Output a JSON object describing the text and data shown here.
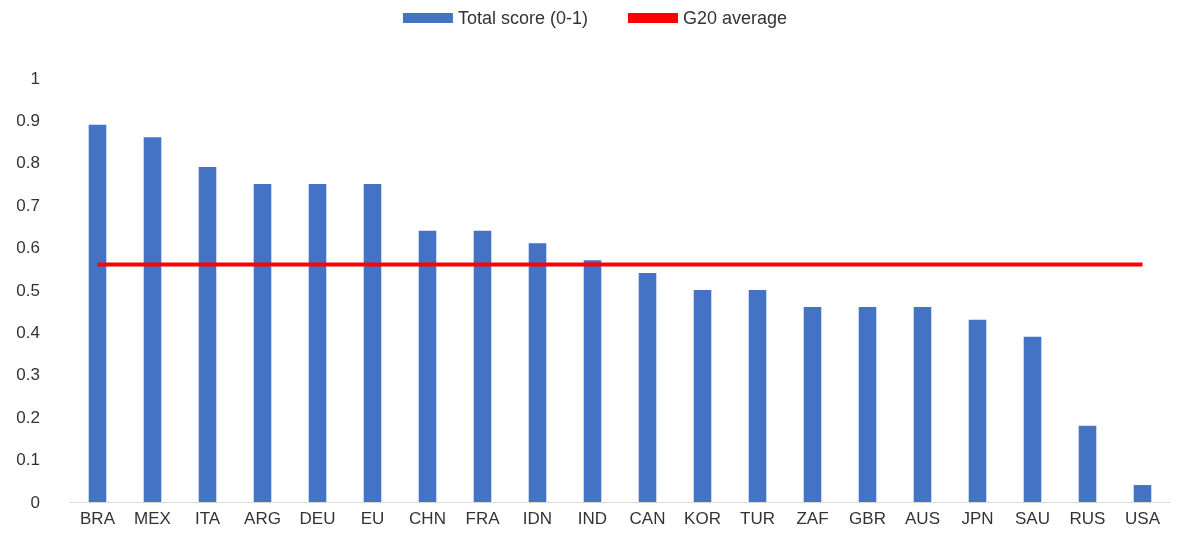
{
  "chart_data": {
    "type": "bar",
    "categories": [
      "BRA",
      "MEX",
      "ITA",
      "ARG",
      "DEU",
      "EU",
      "CHN",
      "FRA",
      "IDN",
      "IND",
      "CAN",
      "KOR",
      "TUR",
      "ZAF",
      "GBR",
      "AUS",
      "JPN",
      "SAU",
      "RUS",
      "USA"
    ],
    "series": [
      {
        "name": "Total score (0-1)",
        "color": "#4472c4",
        "values": [
          0.89,
          0.86,
          0.79,
          0.75,
          0.75,
          0.75,
          0.64,
          0.64,
          0.61,
          0.57,
          0.54,
          0.5,
          0.5,
          0.46,
          0.46,
          0.46,
          0.43,
          0.39,
          0.18,
          0.04
        ]
      },
      {
        "name": "G20 average",
        "type": "line",
        "color": "#ff0000",
        "marker": "none",
        "values": [
          0.56,
          0.56,
          0.56,
          0.56,
          0.56,
          0.56,
          0.56,
          0.56,
          0.56,
          0.56,
          0.56,
          0.56,
          0.56,
          0.56,
          0.56,
          0.56,
          0.56,
          0.56,
          0.56,
          0.56
        ]
      }
    ],
    "ylim": [
      0,
      1
    ],
    "yticks": [
      0,
      0.1,
      0.2,
      0.3,
      0.4,
      0.5,
      0.6,
      0.7,
      0.8,
      0.9,
      1
    ],
    "grid": false,
    "legend": "top"
  }
}
